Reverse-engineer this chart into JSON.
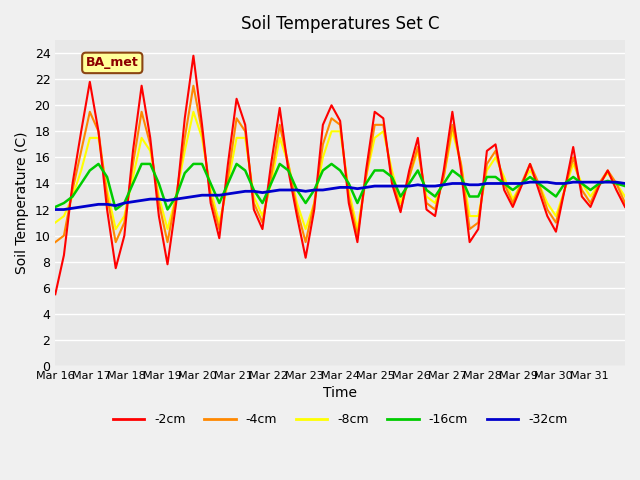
{
  "title": "Soil Temperatures Set C",
  "xlabel": "Time",
  "ylabel": "Soil Temperature (C)",
  "ylim": [
    0,
    25
  ],
  "yticks": [
    0,
    2,
    4,
    6,
    8,
    10,
    12,
    14,
    16,
    18,
    20,
    22,
    24
  ],
  "x_labels": [
    "Mar 16",
    "Mar 17",
    "Mar 18",
    "Mar 19",
    "Mar 20",
    "Mar 21",
    "Mar 22",
    "Mar 23",
    "Mar 24",
    "Mar 25",
    "Mar 26",
    "Mar 27",
    "Mar 28",
    "Mar 29",
    "Mar 30",
    "Mar 31"
  ],
  "colors": {
    "-2cm": "#ff0000",
    "-4cm": "#ff8800",
    "-8cm": "#ffff00",
    "-16cm": "#00cc00",
    "-32cm": "#0000cc"
  },
  "legend_label": "BA_met",
  "series": {
    "-2cm": [
      5.5,
      8.5,
      14.0,
      18.0,
      21.8,
      18.0,
      12.0,
      7.5,
      10.0,
      16.5,
      21.5,
      17.5,
      11.5,
      7.8,
      12.5,
      19.0,
      23.8,
      18.5,
      12.5,
      9.8,
      15.5,
      20.5,
      18.5,
      12.0,
      10.5,
      15.5,
      19.8,
      15.0,
      11.5,
      8.3,
      12.0,
      18.5,
      20.0,
      18.8,
      12.5,
      9.5,
      15.0,
      19.5,
      19.0,
      14.0,
      11.8,
      15.0,
      17.5,
      12.0,
      11.5,
      15.0,
      19.5,
      15.0,
      9.5,
      10.5,
      16.5,
      17.0,
      13.5,
      12.2,
      13.8,
      15.5,
      13.5,
      11.5,
      10.3,
      13.5,
      16.8,
      13.0,
      12.2,
      13.8,
      15.0,
      13.5,
      12.2
    ],
    "-4cm": [
      9.5,
      10.0,
      13.5,
      16.5,
      19.5,
      18.0,
      13.0,
      9.5,
      11.0,
      15.5,
      19.5,
      17.0,
      12.5,
      9.5,
      13.0,
      17.5,
      21.5,
      18.0,
      13.0,
      10.5,
      14.5,
      19.0,
      18.0,
      12.5,
      11.0,
      14.5,
      18.5,
      15.5,
      12.0,
      9.5,
      12.5,
      17.0,
      19.0,
      18.5,
      13.0,
      10.0,
      14.5,
      18.5,
      18.5,
      14.5,
      12.0,
      14.5,
      16.8,
      12.5,
      12.0,
      14.5,
      18.5,
      15.5,
      10.5,
      11.0,
      15.5,
      16.5,
      14.0,
      12.5,
      14.0,
      15.5,
      14.0,
      12.0,
      11.0,
      13.5,
      16.0,
      13.5,
      12.5,
      14.0,
      15.0,
      14.0,
      12.5
    ],
    "-8cm": [
      11.0,
      11.5,
      13.0,
      15.0,
      17.5,
      17.5,
      13.5,
      10.5,
      11.5,
      14.5,
      17.5,
      16.5,
      13.0,
      10.5,
      13.0,
      16.5,
      19.5,
      17.5,
      13.5,
      11.0,
      14.0,
      17.5,
      17.5,
      13.0,
      11.5,
      14.0,
      17.5,
      15.5,
      12.5,
      10.5,
      12.5,
      16.0,
      18.0,
      18.0,
      13.5,
      10.5,
      14.5,
      17.5,
      18.0,
      15.0,
      12.5,
      14.5,
      16.5,
      13.0,
      12.5,
      14.5,
      18.0,
      15.5,
      11.5,
      11.5,
      15.0,
      16.0,
      14.5,
      12.8,
      14.0,
      15.0,
      14.0,
      12.5,
      11.5,
      13.5,
      15.5,
      14.0,
      13.0,
      14.0,
      14.8,
      14.0,
      13.0
    ],
    "-16cm": [
      12.2,
      12.5,
      13.0,
      14.0,
      15.0,
      15.5,
      14.5,
      12.0,
      12.5,
      14.0,
      15.5,
      15.5,
      14.0,
      12.0,
      13.0,
      14.8,
      15.5,
      15.5,
      14.0,
      12.5,
      14.0,
      15.5,
      15.0,
      13.5,
      12.5,
      14.0,
      15.5,
      15.0,
      13.5,
      12.5,
      13.5,
      15.0,
      15.5,
      15.0,
      14.0,
      12.5,
      14.0,
      15.0,
      15.0,
      14.5,
      13.0,
      14.0,
      15.0,
      13.5,
      13.0,
      14.0,
      15.0,
      14.5,
      13.0,
      13.0,
      14.5,
      14.5,
      14.0,
      13.5,
      14.0,
      14.5,
      14.0,
      13.5,
      13.0,
      14.0,
      14.5,
      14.0,
      13.5,
      14.0,
      14.2,
      14.0,
      13.8
    ],
    "-32cm": [
      12.0,
      12.0,
      12.1,
      12.2,
      12.3,
      12.4,
      12.4,
      12.3,
      12.5,
      12.6,
      12.7,
      12.8,
      12.8,
      12.7,
      12.8,
      12.9,
      13.0,
      13.1,
      13.1,
      13.1,
      13.2,
      13.3,
      13.4,
      13.4,
      13.3,
      13.4,
      13.5,
      13.5,
      13.5,
      13.4,
      13.5,
      13.5,
      13.6,
      13.7,
      13.7,
      13.6,
      13.7,
      13.8,
      13.8,
      13.8,
      13.8,
      13.8,
      13.9,
      13.8,
      13.8,
      13.9,
      14.0,
      14.0,
      13.9,
      13.9,
      14.0,
      14.0,
      14.0,
      14.0,
      14.0,
      14.1,
      14.1,
      14.1,
      14.0,
      14.0,
      14.1,
      14.1,
      14.1,
      14.1,
      14.1,
      14.1,
      14.0
    ]
  }
}
